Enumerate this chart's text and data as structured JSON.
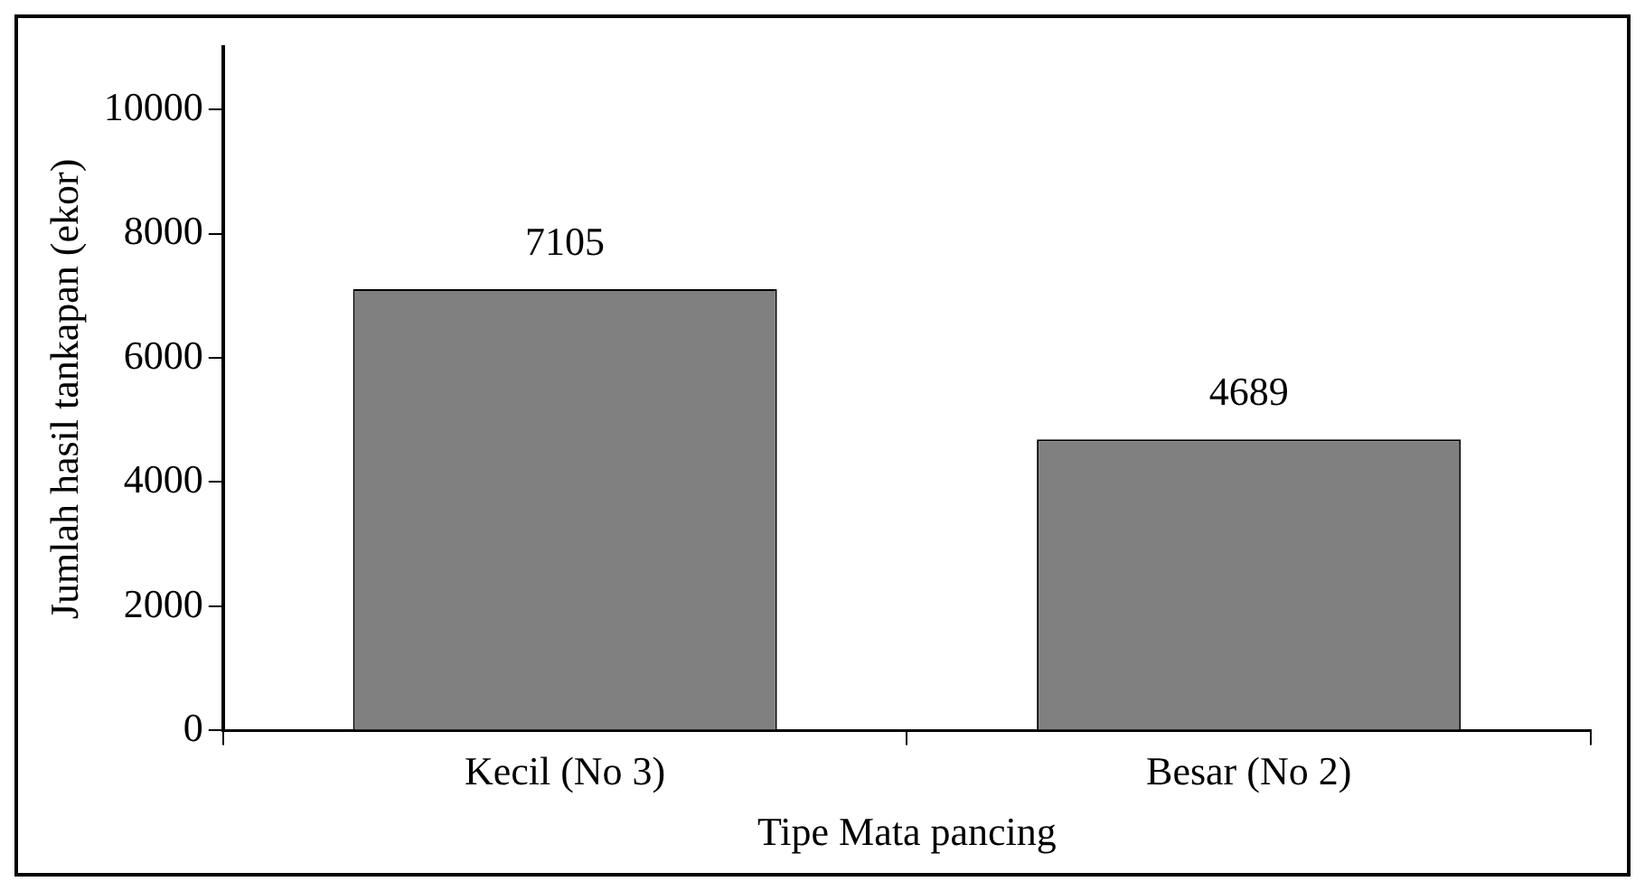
{
  "chart_data": {
    "type": "bar",
    "xlabel": "Tipe Mata pancing",
    "ylabel": "Jumlah hasil tankapan (ekor)",
    "categories": [
      "Kecil (No 3)",
      "Besar (No 2)"
    ],
    "values": [
      7105,
      4689
    ],
    "color": "#808080",
    "ylim": [
      0,
      11000
    ],
    "yticks": [
      0,
      2000,
      4000,
      6000,
      8000,
      10000
    ],
    "data_labels": true,
    "grid": false,
    "legend": false
  }
}
